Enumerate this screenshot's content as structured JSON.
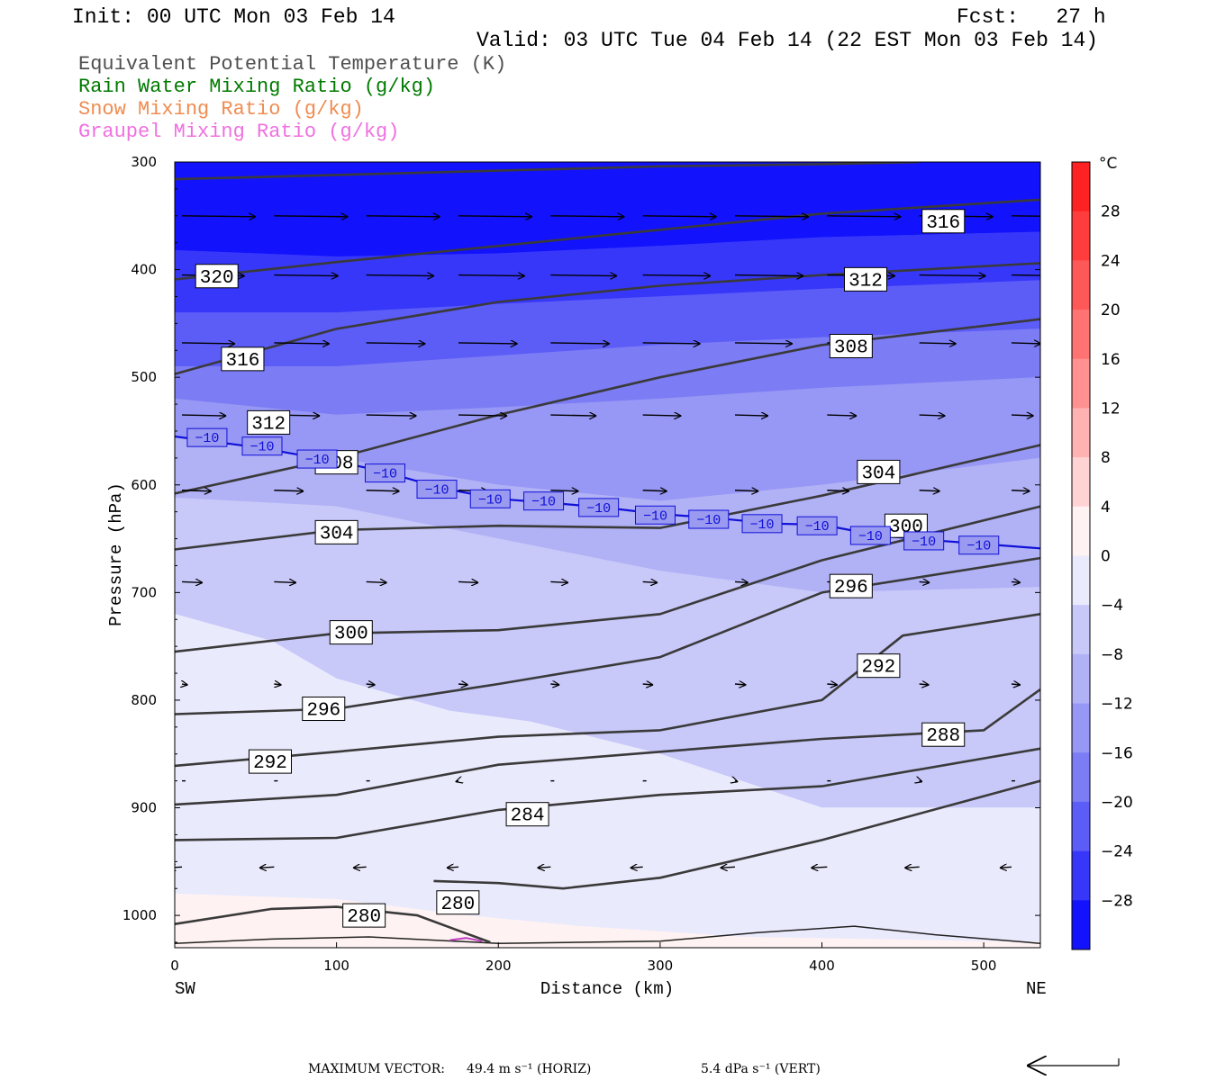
{
  "header": {
    "init": "Init: 00 UTC Mon 03 Feb 14",
    "fcst": "Fcst:   27 h",
    "valid": "Valid: 03 UTC Tue 04 Feb 14 (22 EST Mon 03 Feb 14)"
  },
  "legend": [
    {
      "label": "Equivalent Potential Temperature (K)",
      "color": "#505050"
    },
    {
      "label": "Rain Water Mixing Ratio (g/kg)",
      "color": "#007a00"
    },
    {
      "label": "Snow Mixing Ratio (g/kg)",
      "color": "#f08c50"
    },
    {
      "label": "Graupel Mixing Ratio (g/kg)",
      "color": "#f070e0"
    }
  ],
  "footer": {
    "prefix": "MAXIMUM VECTOR:",
    "horiz": "49.4 m s⁻¹ (HORIZ)",
    "vert": "5.4 dPa s⁻¹ (VERT)"
  },
  "chart_data": {
    "type": "cross-section",
    "xlabel": "Distance (km)",
    "ylabel": "Pressure (hPa)",
    "xlim": [
      0,
      535
    ],
    "ylim": [
      1030,
      300
    ],
    "x_ticks": [
      0,
      100,
      200,
      300,
      400,
      500
    ],
    "y_ticks": [
      300,
      400,
      500,
      600,
      700,
      800,
      900,
      1000
    ],
    "x_left_label": "SW",
    "x_right_label": "NE",
    "colorbar": {
      "unit": "°C",
      "min": -32,
      "max": 32,
      "step": 4,
      "labels": [
        28,
        24,
        20,
        16,
        12,
        8,
        4,
        0,
        -4,
        -8,
        -12,
        -16,
        -20,
        -24,
        -28
      ]
    },
    "temperature_fill": [
      {
        "level": -32,
        "line": [
          [
            0,
            300
          ],
          [
            535,
            300
          ]
        ]
      },
      {
        "level": -28,
        "line": [
          [
            0,
            382
          ],
          [
            100,
            388
          ],
          [
            200,
            385
          ],
          [
            300,
            378
          ],
          [
            400,
            370
          ],
          [
            535,
            365
          ]
        ]
      },
      {
        "level": -24,
        "line": [
          [
            0,
            440
          ],
          [
            100,
            440
          ],
          [
            200,
            432
          ],
          [
            300,
            425
          ],
          [
            400,
            418
          ],
          [
            535,
            410
          ]
        ]
      },
      {
        "level": -20,
        "line": [
          [
            0,
            490
          ],
          [
            100,
            490
          ],
          [
            200,
            480
          ],
          [
            300,
            470
          ],
          [
            400,
            463
          ],
          [
            535,
            455
          ]
        ]
      },
      {
        "level": -16,
        "line": [
          [
            0,
            520
          ],
          [
            100,
            535
          ],
          [
            200,
            528
          ],
          [
            300,
            520
          ],
          [
            400,
            510
          ],
          [
            535,
            500
          ]
        ]
      },
      {
        "level": -12,
        "line": [
          [
            0,
            555
          ],
          [
            100,
            575
          ],
          [
            200,
            600
          ],
          [
            300,
            615
          ],
          [
            400,
            600
          ],
          [
            535,
            575
          ]
        ]
      },
      {
        "level": -8,
        "line": [
          [
            0,
            612
          ],
          [
            100,
            620
          ],
          [
            200,
            650
          ],
          [
            300,
            680
          ],
          [
            400,
            700
          ],
          [
            535,
            695
          ]
        ]
      },
      {
        "level": -4,
        "line": [
          [
            0,
            720
          ],
          [
            60,
            745
          ],
          [
            100,
            780
          ],
          [
            170,
            810
          ],
          [
            220,
            820
          ],
          [
            300,
            850
          ],
          [
            400,
            900
          ],
          [
            535,
            900
          ]
        ]
      },
      {
        "level": 0,
        "line": [
          [
            0,
            980
          ],
          [
            100,
            985
          ],
          [
            180,
            1000
          ],
          [
            250,
            1010
          ],
          [
            350,
            1020
          ],
          [
            535,
            1025
          ]
        ]
      },
      {
        "level": 4,
        "line": [
          [
            0,
            1030
          ],
          [
            535,
            1030
          ]
        ]
      }
    ],
    "theta_e": [
      {
        "value": 320,
        "points": [
          [
            0,
            316
          ],
          [
            100,
            312
          ],
          [
            200,
            308
          ],
          [
            300,
            304
          ],
          [
            400,
            302
          ],
          [
            460,
            300
          ]
        ]
      },
      {
        "value": 316,
        "points": [
          [
            0,
            409
          ],
          [
            100,
            393
          ],
          [
            200,
            378
          ],
          [
            300,
            363
          ],
          [
            400,
            348
          ],
          [
            535,
            335
          ]
        ]
      },
      {
        "value": 312,
        "points": [
          [
            0,
            497
          ],
          [
            100,
            455
          ],
          [
            200,
            430
          ],
          [
            300,
            415
          ],
          [
            400,
            405
          ],
          [
            535,
            394
          ]
        ]
      },
      {
        "value": 308,
        "points": [
          [
            0,
            608
          ],
          [
            100,
            575
          ],
          [
            200,
            535
          ],
          [
            300,
            500
          ],
          [
            400,
            470
          ],
          [
            535,
            446
          ]
        ]
      },
      {
        "value": 304,
        "points": [
          [
            0,
            660
          ],
          [
            100,
            642
          ],
          [
            200,
            638
          ],
          [
            300,
            640
          ],
          [
            400,
            610
          ],
          [
            535,
            563
          ]
        ]
      },
      {
        "value": 300,
        "points": [
          [
            0,
            755
          ],
          [
            100,
            738
          ],
          [
            200,
            735
          ],
          [
            300,
            720
          ],
          [
            400,
            670
          ],
          [
            535,
            620
          ]
        ]
      },
      {
        "value": 296,
        "points": [
          [
            0,
            813
          ],
          [
            100,
            808
          ],
          [
            200,
            785
          ],
          [
            300,
            760
          ],
          [
            400,
            700
          ],
          [
            535,
            668
          ]
        ]
      },
      {
        "value": 292,
        "points": [
          [
            0,
            861
          ],
          [
            100,
            848
          ],
          [
            200,
            834
          ],
          [
            300,
            828
          ],
          [
            400,
            800
          ],
          [
            450,
            740
          ],
          [
            535,
            720
          ]
        ]
      },
      {
        "value": 288,
        "points": [
          [
            0,
            897
          ],
          [
            100,
            888
          ],
          [
            200,
            860
          ],
          [
            300,
            848
          ],
          [
            400,
            836
          ],
          [
            500,
            828
          ],
          [
            535,
            790
          ]
        ]
      },
      {
        "value": 284,
        "points": [
          [
            0,
            930
          ],
          [
            100,
            928
          ],
          [
            200,
            902
          ],
          [
            300,
            888
          ],
          [
            400,
            880
          ],
          [
            535,
            845
          ]
        ]
      },
      {
        "value": 280,
        "points": [
          [
            0,
            1008
          ],
          [
            60,
            994
          ],
          [
            100,
            992
          ],
          [
            150,
            1000
          ],
          [
            195,
            1025
          ]
        ]
      },
      {
        "value": 280,
        "points": [
          [
            160,
            968
          ],
          [
            200,
            970
          ],
          [
            240,
            975
          ],
          [
            300,
            965
          ],
          [
            400,
            930
          ],
          [
            535,
            875
          ]
        ]
      }
    ],
    "theta_e_labels": [
      {
        "text": "320",
        "x": 26,
        "p": 406
      },
      {
        "text": "316",
        "x": 42,
        "p": 483
      },
      {
        "text": "312",
        "x": 58,
        "p": 542
      },
      {
        "text": "308",
        "x": 100,
        "p": 579
      },
      {
        "text": "304",
        "x": 100,
        "p": 644
      },
      {
        "text": "300",
        "x": 109,
        "p": 737
      },
      {
        "text": "296",
        "x": 92,
        "p": 808
      },
      {
        "text": "292",
        "x": 59,
        "p": 857
      },
      {
        "text": "284",
        "x": 218,
        "p": 906
      },
      {
        "text": "280",
        "x": 175,
        "p": 988
      },
      {
        "text": "280",
        "x": 117,
        "p": 1000
      },
      {
        "text": "316",
        "x": 475,
        "p": 355
      },
      {
        "text": "312",
        "x": 427,
        "p": 409
      },
      {
        "text": "308",
        "x": 418,
        "p": 471
      },
      {
        "text": "304",
        "x": 435,
        "p": 588
      },
      {
        "text": "300",
        "x": 452,
        "p": 638
      },
      {
        "text": "296",
        "x": 418,
        "p": 694
      },
      {
        "text": "292",
        "x": 435,
        "p": 768
      },
      {
        "text": "288",
        "x": 475,
        "p": 832
      }
    ],
    "isotherm_minus10": {
      "value": -10,
      "points": [
        [
          0,
          555
        ],
        [
          50,
          565
        ],
        [
          100,
          578
        ],
        [
          130,
          588
        ],
        [
          165,
          603
        ],
        [
          200,
          613
        ],
        [
          235,
          617
        ],
        [
          265,
          621
        ],
        [
          300,
          627
        ],
        [
          335,
          631
        ],
        [
          370,
          636
        ],
        [
          400,
          637
        ],
        [
          435,
          647
        ],
        [
          465,
          651
        ],
        [
          500,
          655
        ],
        [
          535,
          659
        ]
      ],
      "labels": [
        [
          20,
          556
        ],
        [
          54,
          564
        ],
        [
          88,
          576
        ],
        [
          130,
          589
        ],
        [
          162,
          604
        ],
        [
          195,
          613
        ],
        [
          228,
          615
        ],
        [
          262,
          621
        ],
        [
          297,
          628
        ],
        [
          330,
          632
        ],
        [
          363,
          636
        ],
        [
          397,
          638
        ],
        [
          430,
          647
        ],
        [
          463,
          652
        ],
        [
          497,
          656
        ]
      ]
    },
    "wind_vectors": {
      "max_horiz": 49.4,
      "max_vert": 5.4,
      "rows": [
        {
          "p": 350,
          "u": [
            1.0,
            1.0,
            1.0,
            1.0,
            1.0,
            1.0,
            1.0,
            1.0,
            1.0,
            1.0
          ]
        },
        {
          "p": 405,
          "u": [
            0.85,
            0.87,
            0.92,
            0.9,
            0.9,
            0.92,
            0.93,
            0.92,
            0.9,
            0.85
          ]
        },
        {
          "p": 468,
          "u": [
            0.72,
            0.75,
            0.8,
            0.8,
            0.8,
            0.78,
            0.78,
            0.6,
            0.5,
            0.4
          ]
        },
        {
          "p": 535,
          "u": [
            0.6,
            0.62,
            0.68,
            0.66,
            0.62,
            0.52,
            0.45,
            0.4,
            0.35,
            0.3
          ]
        },
        {
          "p": 605,
          "u": [
            0.4,
            0.4,
            0.45,
            0.4,
            0.38,
            0.33,
            0.32,
            0.3,
            0.28,
            0.25
          ]
        },
        {
          "p": 690,
          "u": [
            0.28,
            0.3,
            0.28,
            0.27,
            0.24,
            0.2,
            0.18,
            0.16,
            0.14,
            0.12
          ]
        },
        {
          "p": 785,
          "u": [
            0.08,
            0.1,
            0.12,
            0.13,
            0.12,
            0.14,
            0.15,
            0.14,
            0.13,
            0.12
          ]
        },
        {
          "p": 875,
          "u": [
            0.02,
            0.03,
            -0.02,
            -0.04,
            -0.03,
            0.02,
            0.04,
            0.03,
            0.04,
            0.03
          ]
        },
        {
          "p": 955,
          "u": [
            -0.18,
            -0.2,
            -0.18,
            -0.16,
            -0.18,
            -0.17,
            -0.2,
            -0.22,
            -0.2,
            -0.16
          ]
        }
      ]
    }
  }
}
